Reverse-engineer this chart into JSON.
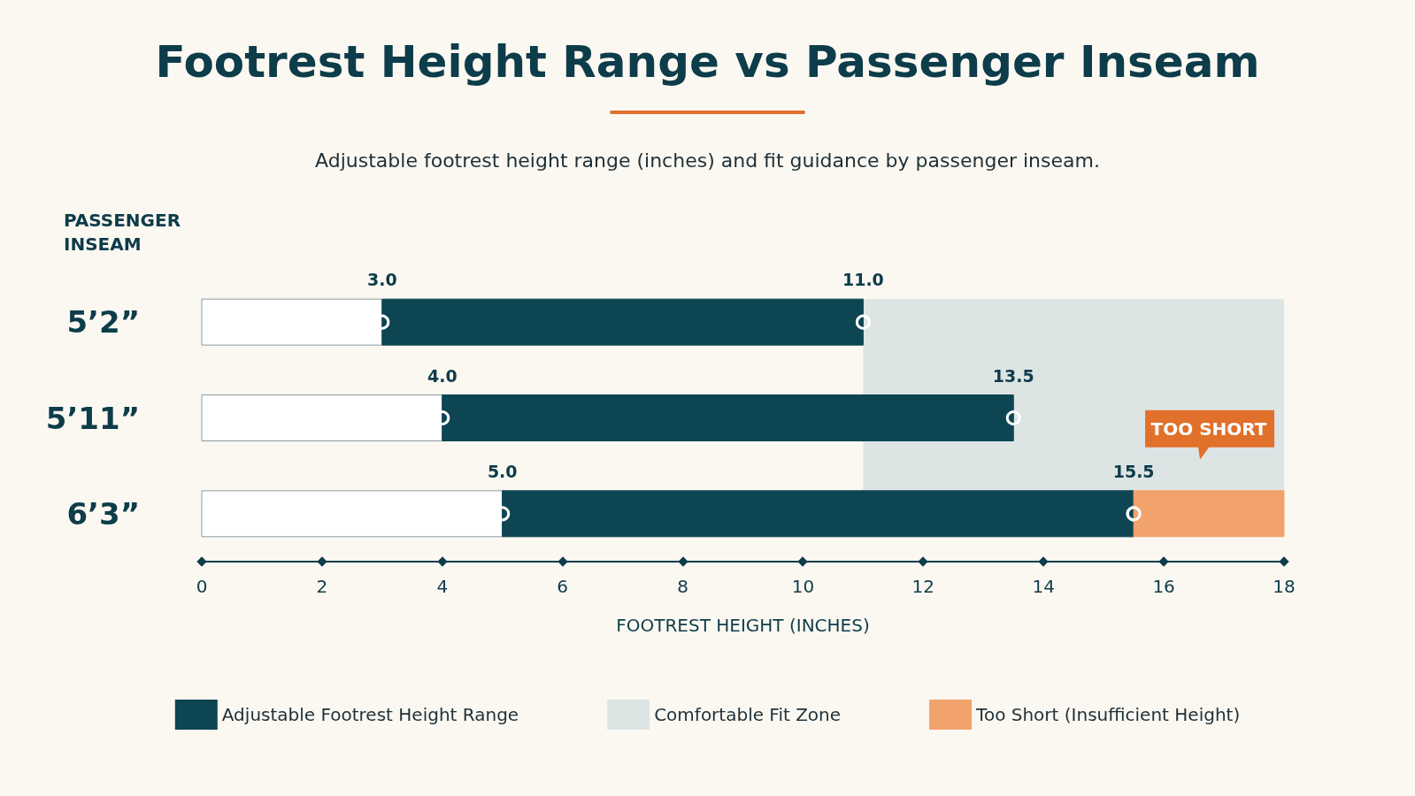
{
  "chart_data": {
    "type": "bar",
    "orientation": "horizontal",
    "title": "Footrest Height Range vs Passenger Inseam",
    "subtitle": "Adjustable footrest height range (inches) and fit guidance by passenger inseam.",
    "ylabel": "PASSENGER INSEAM",
    "xlabel": "FOOTREST HEIGHT (INCHES)",
    "categories": [
      "5’2”",
      "5’11”",
      "6’3”"
    ],
    "series": [
      {
        "color": "#ffffff",
        "base": [
          0,
          0,
          0
        ],
        "values": [
          3,
          4,
          5
        ]
      },
      {
        "name": "Adjustable Footrest Height Range",
        "color": "#0d4553",
        "base": [
          3,
          4,
          5
        ],
        "values": [
          8,
          9.5,
          10.5
        ]
      },
      {
        "name": "Too Short (Insufficient Height)",
        "color": "#f2a36c",
        "base": [
          null,
          null,
          15.5
        ],
        "values": [
          null,
          null,
          2.5
        ]
      }
    ],
    "bands": [
      {
        "axis": "x",
        "from": 11,
        "to": 18,
        "label": "Comfortable Fit Zone",
        "color": "#dde5e4"
      }
    ],
    "annotations": [
      {
        "text": "3.0",
        "x": 3,
        "y": "5’2”"
      },
      {
        "text": "11.0",
        "x": 11,
        "y": "5’2”"
      },
      {
        "text": "4.0",
        "x": 4,
        "y": "5’11”"
      },
      {
        "text": "13.5",
        "x": 13.5,
        "y": "5’11”"
      },
      {
        "text": "5.0",
        "x": 5,
        "y": "6’3”"
      },
      {
        "text": "15.5",
        "x": 15.5,
        "y": "6’3”"
      },
      "TOO SHORT"
    ],
    "xlim": [
      0,
      18
    ],
    "xticks": [
      0,
      2,
      4,
      6,
      8,
      10,
      12,
      14,
      16,
      18
    ],
    "marker": "circle",
    "grid": false,
    "legend": "bottom"
  }
}
